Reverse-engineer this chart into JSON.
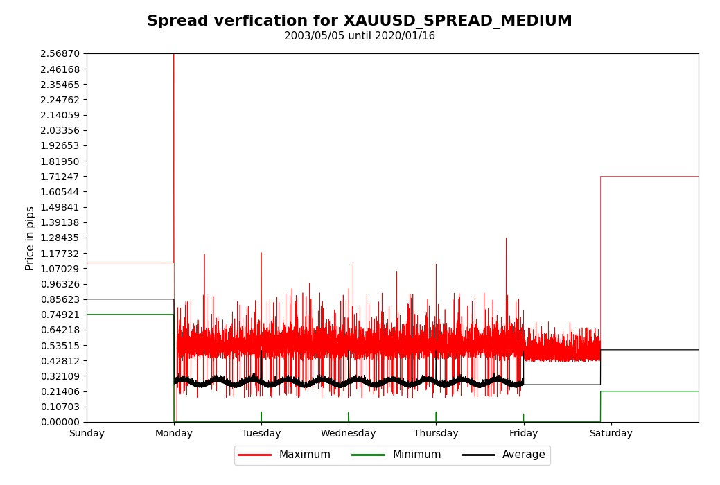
{
  "title": "Spread verfication for XAUUSD_SPREAD_MEDIUM",
  "subtitle": "2003/05/05 until 2020/01/16",
  "ylabel": "Price in pips",
  "yticks": [
    0.0,
    0.10703,
    0.21406,
    0.32109,
    0.42812,
    0.53515,
    0.64218,
    0.74921,
    0.85623,
    0.96326,
    1.07029,
    1.17732,
    1.28435,
    1.39138,
    1.49841,
    1.60544,
    1.71247,
    1.8195,
    1.92653,
    2.03356,
    2.14059,
    2.24762,
    2.35465,
    2.46168,
    2.5687
  ],
  "xtick_labels": [
    "Sunday",
    "Monday",
    "Tuesday",
    "Wednesday",
    "Thursday",
    "Friday",
    "Saturday"
  ],
  "xtick_positions": [
    0,
    1,
    2,
    3,
    4,
    5,
    6
  ],
  "ylim": [
    0.0,
    2.5687
  ],
  "xlim": [
    0,
    7
  ],
  "colors": {
    "maximum": "#ff0000",
    "minimum": "#008000",
    "average": "#000000",
    "background": "#ffffff"
  },
  "legend_entries": [
    "Maximum",
    "Minimum",
    "Average"
  ],
  "title_fontsize": 16,
  "subtitle_fontsize": 11,
  "axis_fontsize": 11,
  "tick_fontsize": 10,
  "sunday_max": 1.107,
  "sunday_avg": 0.856,
  "sunday_min": 0.749,
  "weekday_max_base": 0.42,
  "weekday_avg_base": 0.25,
  "weekday_min_base": 0.001,
  "sat_max": 1.712,
  "sat_avg": 0.503,
  "sat_min": 0.214,
  "sun_mon_spike_max": 2.568,
  "day_open_spike_max": 1.0,
  "day_open_spike_avg": 0.5
}
